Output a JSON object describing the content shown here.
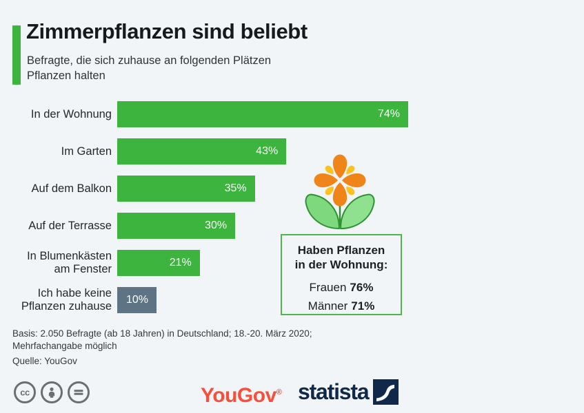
{
  "header": {
    "title": "Zimmerpflanzen sind beliebt",
    "subtitle": "Befragte, die sich zuhause an folgenden Plätzen\nPflanzen halten"
  },
  "chart_data": {
    "type": "bar",
    "orientation": "horizontal",
    "title": "Zimmerpflanzen sind beliebt",
    "subtitle": "Befragte, die sich zuhause an folgenden Plätzen Pflanzen halten",
    "categories": [
      "In der Wohnung",
      "Im Garten",
      "Auf dem Balkon",
      "Auf der Terrasse",
      "In Blumenkästen\nam Fenster",
      "Ich habe keine\nPflanzen zuhause"
    ],
    "values": [
      74,
      43,
      35,
      30,
      21,
      10
    ],
    "value_labels": [
      "74%",
      "43%",
      "35%",
      "30%",
      "21%",
      "10%"
    ],
    "bar_colors": [
      "#3cb43e",
      "#3cb43e",
      "#3cb43e",
      "#3cb43e",
      "#3cb43e",
      "#5e7484"
    ],
    "axis_max": 74,
    "xlim": [
      0,
      74
    ],
    "grid": false,
    "legend": false,
    "unit": "%"
  },
  "annotation_box": {
    "title": "Haben Pflanzen\nin der Wohnung:",
    "rows": [
      {
        "label": "Frauen",
        "value": "76%"
      },
      {
        "label": "Männer",
        "value": "71%"
      }
    ]
  },
  "footer": {
    "basis": "Basis: 2.050 Befragte (ab 18 Jahren) in Deutschland; 18.-20. März 2020;\nMehrfachangabe möglich",
    "source": "Quelle: YouGov"
  },
  "branding": {
    "license_icons": [
      "cc-icon",
      "attribution-person-icon",
      "equals-no-derivatives-icon"
    ],
    "cc_text": "cc",
    "yougov": "YouGov",
    "yougov_mark": "®",
    "statista": "statista"
  },
  "colors": {
    "background": "#f1f5f8",
    "accent_green": "#3cb43e",
    "neutral_bar_gray": "#5e7484",
    "box_border_green": "#4cb64c",
    "yougov_red": "#f6503c",
    "statista_navy": "#10294a",
    "flower_petal_orange": "#ef8419",
    "flower_accent_yellow": "#fcc21f",
    "leaf_green": "#7ed87e",
    "leaf_outline_green": "#2e9230"
  }
}
